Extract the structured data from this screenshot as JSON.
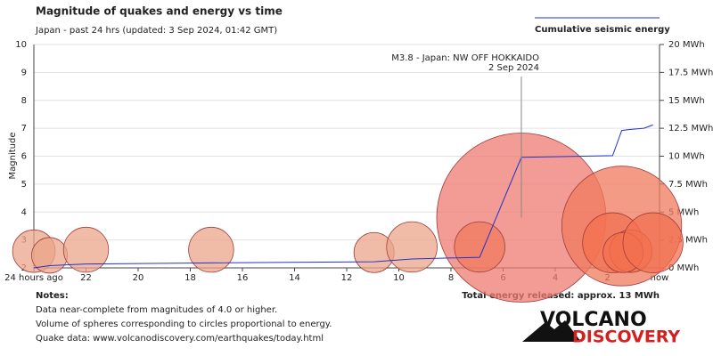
{
  "chart_data": {
    "type": "scatter",
    "title": "Magnitude of quakes and energy vs time",
    "subtitle": "Japan - past 24 hrs (updated: 3 Sep 2024, 01:42 GMT)",
    "y_label": "Magnitude",
    "x": [
      5.3,
      24,
      23.4,
      22,
      17.2,
      10.95,
      9.5,
      6.9,
      1.45,
      1.8,
      1.1,
      1.4,
      0.25
    ],
    "values": [
      3.8,
      2.6,
      2.45,
      2.65,
      2.65,
      2.55,
      2.75,
      2.75,
      3.5,
      2.9,
      2.6,
      2.55,
      2.9
    ],
    "colors": [
      "#ee7b72",
      "#eba58a",
      "#eba58a",
      "#eba58a",
      "#eba58a",
      "#eba58a",
      "#eba58a",
      "#f07a5e",
      "#f07a5e",
      "#f3704f",
      "#f3704f",
      "#f3704f",
      "#f3704f"
    ],
    "xlim": [
      24,
      0
    ],
    "xticks": [
      {
        "value": 24,
        "label": "24 hours ago"
      },
      22,
      20,
      18,
      16,
      14,
      12,
      10,
      8,
      6,
      4,
      2,
      {
        "value": 0,
        "label": "now"
      }
    ],
    "ylim": [
      2,
      10
    ],
    "yticks": [
      2,
      3,
      4,
      5,
      6,
      7,
      8,
      9,
      10
    ],
    "y2lim": [
      0,
      20
    ],
    "y2ticks": [
      {
        "value": 0,
        "label": "0 MWh"
      },
      {
        "value": 2.5,
        "label": "2.5 MWh"
      },
      {
        "value": 5,
        "label": "5 MWh"
      },
      {
        "value": 7.5,
        "label": "7.5 MWh"
      },
      {
        "value": 10,
        "label": "10 MWh"
      },
      {
        "value": 12.5,
        "label": "12.5 MWh"
      },
      {
        "value": 15,
        "label": "15 MWh"
      },
      {
        "value": 17.5,
        "label": "17.5 MWh"
      },
      {
        "value": 20,
        "label": "20 MWh"
      }
    ],
    "grid": true,
    "series": [
      {
        "name": "Cumulative seismic energy",
        "type": "line",
        "axis": "y2",
        "color": "#2233cc",
        "x": [
          24,
          23.4,
          22,
          17.2,
          10.95,
          9.5,
          6.9,
          5.3,
          1.8,
          1.45,
          1.1,
          0.6,
          0.25
        ],
        "values": [
          0,
          0.2,
          0.35,
          0.45,
          0.55,
          0.8,
          0.95,
          9.9,
          10.05,
          12.3,
          12.4,
          12.5,
          12.8
        ]
      }
    ],
    "annotation": {
      "text": "M3.8 - Japan: NW OFF HOKKAIDO",
      "subtext": "2 Sep 2024"
    }
  },
  "notes": {
    "title": "Notes:",
    "lines": [
      "Data near-complete from magnitudes of 4.0 or higher.",
      "Volume of spheres corresponding to circles proportional to energy.",
      "Quake data: www.volcanodiscovery.com/earthquakes/today.html"
    ]
  },
  "total_energy": "Total energy released: approx. 13 MWh",
  "logo": {
    "line1": "VOLCANO",
    "line2": "DISCOVERY"
  }
}
